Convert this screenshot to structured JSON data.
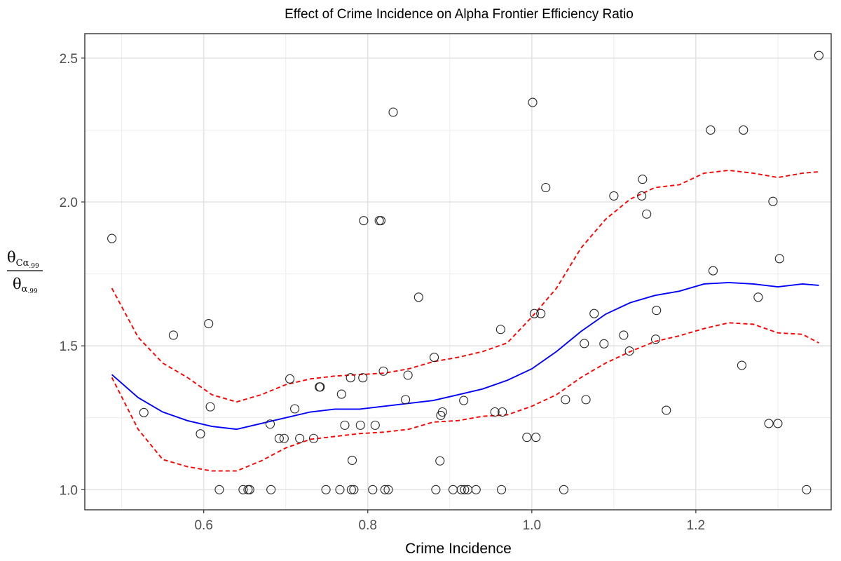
{
  "chart_data": {
    "type": "scatter",
    "title": "Effect of Crime Incidence on Alpha Frontier Efficiency Ratio",
    "xlabel": "Crime Incidence",
    "ylabel": {
      "numerator": {
        "main": "θ",
        "sub": "Cα",
        "subsub": ".99"
      },
      "denominator": {
        "main": "θ",
        "sub": "α",
        "subsub": ".99"
      }
    },
    "xlim": [
      0.455,
      1.365
    ],
    "ylim": [
      0.93,
      2.585
    ],
    "x_ticks": [
      0.6,
      0.8,
      1.0,
      1.2
    ],
    "x_tick_labels": [
      "0.6",
      "0.8",
      "1.0",
      "1.2"
    ],
    "y_ticks": [
      1.0,
      1.5,
      2.0,
      2.5
    ],
    "y_tick_labels": [
      "1.0",
      "1.5",
      "2.0",
      "2.5"
    ],
    "grid": true,
    "points": [
      [
        0.488,
        1.873
      ],
      [
        0.527,
        1.268
      ],
      [
        0.563,
        1.537
      ],
      [
        0.596,
        1.194
      ],
      [
        0.606,
        1.577
      ],
      [
        0.608,
        1.288
      ],
      [
        0.619,
        1.0
      ],
      [
        0.648,
        1.0
      ],
      [
        0.654,
        1.0
      ],
      [
        0.656,
        1.0
      ],
      [
        0.682,
        1.0
      ],
      [
        0.681,
        1.228
      ],
      [
        0.692,
        1.178
      ],
      [
        0.698,
        1.178
      ],
      [
        0.705,
        1.385
      ],
      [
        0.711,
        1.281
      ],
      [
        0.717,
        1.178
      ],
      [
        0.734,
        1.178
      ],
      [
        0.741,
        1.357
      ],
      [
        0.742,
        1.357
      ],
      [
        0.749,
        1.0
      ],
      [
        0.766,
        1.0
      ],
      [
        0.768,
        1.332
      ],
      [
        0.772,
        1.224
      ],
      [
        0.779,
        1.389
      ],
      [
        0.78,
        1.0
      ],
      [
        0.781,
        1.102
      ],
      [
        0.783,
        1.0
      ],
      [
        0.791,
        1.224
      ],
      [
        0.794,
        1.389
      ],
      [
        0.795,
        1.935
      ],
      [
        0.806,
        1.0
      ],
      [
        0.809,
        1.224
      ],
      [
        0.814,
        1.935
      ],
      [
        0.816,
        1.935
      ],
      [
        0.819,
        1.412
      ],
      [
        0.821,
        1.0
      ],
      [
        0.825,
        1.0
      ],
      [
        0.831,
        2.312
      ],
      [
        0.846,
        1.313
      ],
      [
        0.849,
        1.398
      ],
      [
        0.862,
        1.669
      ],
      [
        0.881,
        1.46
      ],
      [
        0.883,
        1.0
      ],
      [
        0.888,
        1.1
      ],
      [
        0.889,
        1.258
      ],
      [
        0.891,
        1.27
      ],
      [
        0.904,
        1.0
      ],
      [
        0.914,
        1.0
      ],
      [
        0.917,
        1.31
      ],
      [
        0.918,
        1.0
      ],
      [
        0.922,
        1.0
      ],
      [
        0.932,
        1.0
      ],
      [
        0.955,
        1.27
      ],
      [
        0.962,
        1.557
      ],
      [
        0.963,
        1.0
      ],
      [
        0.964,
        1.27
      ],
      [
        0.994,
        1.182
      ],
      [
        1.001,
        2.346
      ],
      [
        1.003,
        1.612
      ],
      [
        1.005,
        1.182
      ],
      [
        1.011,
        1.612
      ],
      [
        1.017,
        2.05
      ],
      [
        1.039,
        1.0
      ],
      [
        1.041,
        1.313
      ],
      [
        1.064,
        1.508
      ],
      [
        1.066,
        1.313
      ],
      [
        1.076,
        1.612
      ],
      [
        1.088,
        1.507
      ],
      [
        1.1,
        2.021
      ],
      [
        1.112,
        1.537
      ],
      [
        1.119,
        1.482
      ],
      [
        1.134,
        2.021
      ],
      [
        1.135,
        2.079
      ],
      [
        1.14,
        1.958
      ],
      [
        1.151,
        1.523
      ],
      [
        1.152,
        1.623
      ],
      [
        1.164,
        1.276
      ],
      [
        1.218,
        2.25
      ],
      [
        1.221,
        1.761
      ],
      [
        1.256,
        1.432
      ],
      [
        1.258,
        2.25
      ],
      [
        1.276,
        1.669
      ],
      [
        1.289,
        1.23
      ],
      [
        1.294,
        2.002
      ],
      [
        1.3,
        1.23
      ],
      [
        1.302,
        1.803
      ],
      [
        1.335,
        1.0
      ],
      [
        1.35,
        2.509
      ]
    ],
    "series": [
      {
        "style": "solid",
        "color": "#0000ff",
        "x": [
          0.488,
          0.52,
          0.55,
          0.58,
          0.61,
          0.64,
          0.67,
          0.7,
          0.73,
          0.76,
          0.79,
          0.82,
          0.85,
          0.88,
          0.91,
          0.94,
          0.97,
          1.0,
          1.03,
          1.06,
          1.09,
          1.12,
          1.15,
          1.18,
          1.21,
          1.24,
          1.27,
          1.3,
          1.33,
          1.35
        ],
        "y": [
          1.4,
          1.32,
          1.27,
          1.24,
          1.22,
          1.21,
          1.23,
          1.25,
          1.27,
          1.28,
          1.28,
          1.29,
          1.3,
          1.31,
          1.33,
          1.35,
          1.38,
          1.42,
          1.48,
          1.55,
          1.61,
          1.65,
          1.675,
          1.69,
          1.715,
          1.72,
          1.715,
          1.705,
          1.715,
          1.71
        ]
      },
      {
        "style": "dashed",
        "color": "#ff0000",
        "x": [
          0.488,
          0.52,
          0.55,
          0.58,
          0.61,
          0.64,
          0.67,
          0.7,
          0.73,
          0.76,
          0.79,
          0.82,
          0.85,
          0.88,
          0.91,
          0.94,
          0.97,
          1.0,
          1.03,
          1.06,
          1.09,
          1.12,
          1.15,
          1.18,
          1.21,
          1.24,
          1.27,
          1.3,
          1.33,
          1.35
        ],
        "y": [
          1.7,
          1.53,
          1.44,
          1.39,
          1.33,
          1.305,
          1.33,
          1.365,
          1.385,
          1.395,
          1.4,
          1.405,
          1.42,
          1.445,
          1.46,
          1.48,
          1.51,
          1.6,
          1.7,
          1.84,
          1.94,
          2.01,
          2.05,
          2.06,
          2.1,
          2.11,
          2.1,
          2.085,
          2.1,
          2.105
        ]
      },
      {
        "style": "dashed",
        "color": "#ff0000",
        "x": [
          0.488,
          0.52,
          0.55,
          0.58,
          0.61,
          0.64,
          0.67,
          0.7,
          0.73,
          0.76,
          0.79,
          0.82,
          0.85,
          0.88,
          0.91,
          0.94,
          0.97,
          1.0,
          1.03,
          1.06,
          1.09,
          1.12,
          1.15,
          1.18,
          1.21,
          1.24,
          1.27,
          1.3,
          1.33,
          1.35
        ],
        "y": [
          1.39,
          1.21,
          1.105,
          1.08,
          1.065,
          1.065,
          1.1,
          1.145,
          1.175,
          1.185,
          1.195,
          1.2,
          1.21,
          1.235,
          1.24,
          1.255,
          1.26,
          1.29,
          1.33,
          1.39,
          1.44,
          1.48,
          1.515,
          1.535,
          1.56,
          1.58,
          1.575,
          1.545,
          1.54,
          1.51
        ]
      }
    ]
  }
}
